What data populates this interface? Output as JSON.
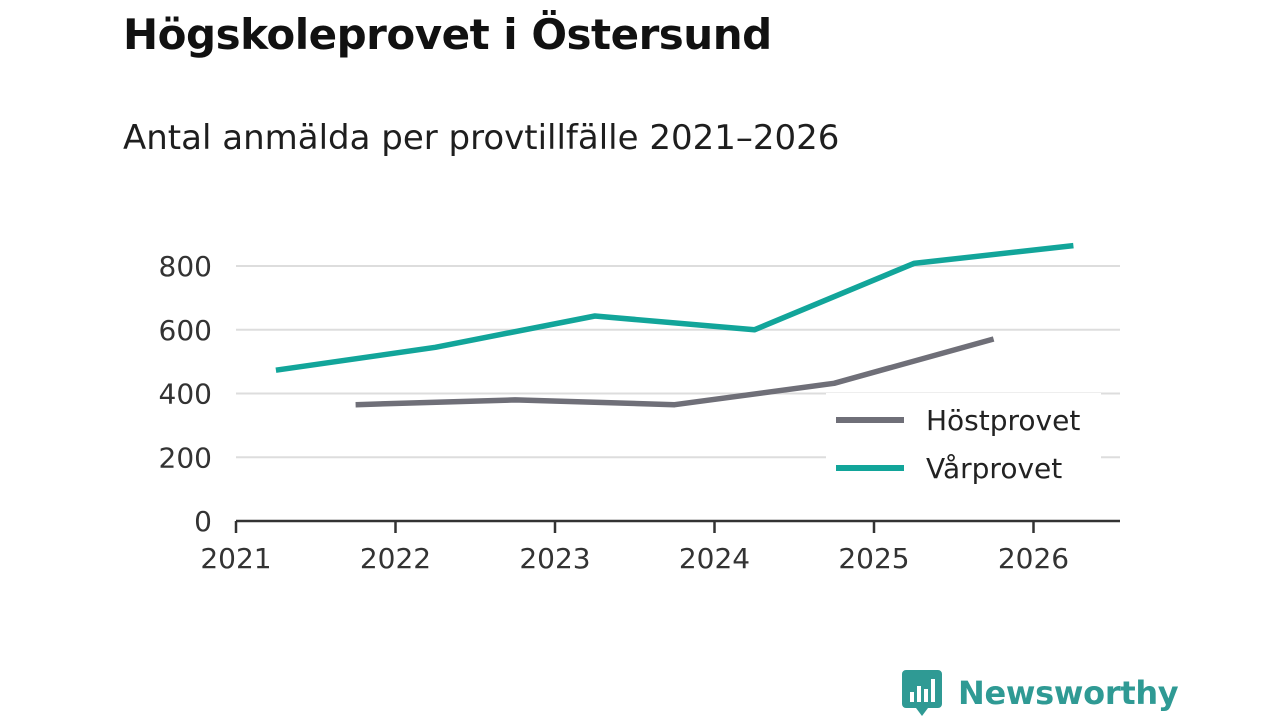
{
  "header": {
    "title": "Högskoleprovet i Östersund",
    "subtitle": "Antal anmälda per provtillfälle 2021–2026"
  },
  "chart_data": {
    "type": "line",
    "title": "Högskoleprovet i Östersund",
    "subtitle": "Antal anmälda per provtillfälle 2021–2026",
    "xlabel": "",
    "ylabel": "",
    "xlim": [
      2021,
      2026.6
    ],
    "ylim": [
      0,
      900
    ],
    "x_ticks": [
      2021,
      2022,
      2023,
      2024,
      2025,
      2026
    ],
    "x_tick_labels": [
      "2021",
      "2022",
      "2023",
      "2024",
      "2025",
      "2026"
    ],
    "y_ticks": [
      0,
      200,
      400,
      600,
      800
    ],
    "y_tick_labels": [
      "0",
      "200",
      "400",
      "600",
      "800"
    ],
    "grid": true,
    "legend_position": "bottom-right",
    "series": [
      {
        "name": "Höstprovet",
        "color": "#6f6f78",
        "x": [
          2021.75,
          2022.75,
          2023.75,
          2024.75,
          2025.75
        ],
        "values": [
          365,
          380,
          365,
          432,
          571
        ]
      },
      {
        "name": "Vårprovet",
        "color": "#12a59a",
        "x": [
          2021.25,
          2022.25,
          2023.25,
          2024.25,
          2025.25,
          2026.25
        ],
        "values": [
          473,
          545,
          643,
          600,
          808,
          864
        ]
      }
    ]
  },
  "branding": {
    "name": "Newsworthy",
    "color": "#2f9a94",
    "icon": "newsworthy-chart-bubble-icon"
  }
}
